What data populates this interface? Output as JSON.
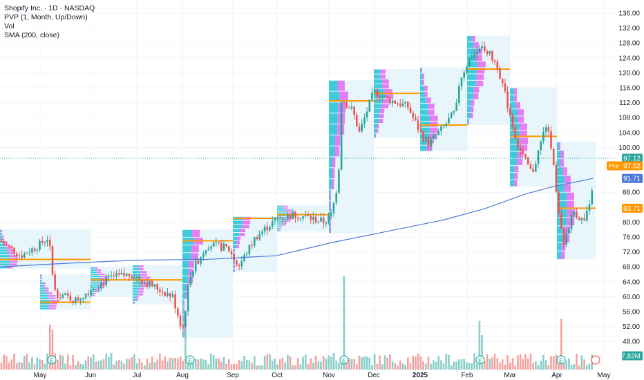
{
  "legend": {
    "title": "Shopify Inc. · 1D · NASDAQ",
    "line2": "PVP (1, Month, Up/Down)",
    "line3": "Vol",
    "line4": "SMA (200, close)"
  },
  "colors": {
    "up": "#26a69a",
    "down": "#ef5350",
    "sma": "#4a78d8",
    "poc": "#ff9800",
    "vp_up": "#22c3d6",
    "vp_down": "#e255f0",
    "range_bg": "#e8f6fb"
  },
  "price_tags": {
    "last": {
      "text": "97.12",
      "color": "#26a69a"
    },
    "pre": {
      "label": "Pre",
      "text": "97.02",
      "color": "#ff9800"
    },
    "sma": {
      "text": "91.71",
      "color": "#4a78d8"
    },
    "poc": {
      "text": "83.71",
      "color": "#ff9800"
    },
    "vol": {
      "text": "7.82M",
      "color": "#26a69a"
    }
  },
  "chart_data": {
    "type": "candlestick",
    "title": "Shopify Inc. · 1D · NASDAQ",
    "ylim": [
      44,
      137
    ],
    "y_ticks": [
      "136.00",
      "132.00",
      "128.00",
      "124.00",
      "120.00",
      "116.00",
      "112.00",
      "108.00",
      "104.00",
      "100.00",
      "88.00",
      "80.00",
      "76.00",
      "72.00",
      "68.00",
      "64.00",
      "60.00",
      "56.00",
      "52.00",
      "48.00"
    ],
    "x_ticks": [
      "May",
      "Jun",
      "Jul",
      "Aug",
      "Sep",
      "Oct",
      "Nov",
      "Dec",
      "2025",
      "Feb",
      "Mar",
      "Apr",
      "May"
    ],
    "earnings_markers": [
      "E",
      "E",
      "E",
      "E",
      "E",
      "E"
    ],
    "monthly_profiles": [
      {
        "month": "Apr",
        "low": 67.5,
        "high": 78.0,
        "poc": 70.0
      },
      {
        "month": "May",
        "low": 56.5,
        "high": 66.0,
        "poc": 58.5
      },
      {
        "month": "Jun",
        "low": 60.0,
        "high": 68.0,
        "poc": 64.5
      },
      {
        "month": "Jul",
        "low": 58.0,
        "high": 68.5,
        "poc": 64.5
      },
      {
        "month": "Aug",
        "low": 49.0,
        "high": 78.0,
        "poc": 75.0
      },
      {
        "month": "Sep",
        "low": 66.5,
        "high": 81.5,
        "poc": 81.0
      },
      {
        "month": "Oct",
        "low": 77.5,
        "high": 84.5,
        "poc": 82.0
      },
      {
        "month": "Nov",
        "low": 77.0,
        "high": 118.0,
        "poc": 112.5
      },
      {
        "month": "Dec",
        "low": 102.5,
        "high": 121.0,
        "poc": 114.5
      },
      {
        "month": "Jan",
        "low": 99.0,
        "high": 121.5,
        "poc": 106.0
      },
      {
        "month": "Feb",
        "low": 106.0,
        "high": 130.0,
        "poc": 121.0
      },
      {
        "month": "Mar",
        "low": 89.5,
        "high": 116.0,
        "poc": 103.0
      },
      {
        "month": "Apr",
        "low": 70.0,
        "high": 101.5,
        "poc": 83.71
      }
    ],
    "sma_200": [
      [
        0,
        68.0
      ],
      [
        100,
        69.0
      ],
      [
        200,
        69.8
      ],
      [
        300,
        70.0
      ],
      [
        400,
        71.0
      ],
      [
        480,
        74.5
      ],
      [
        560,
        77.5
      ],
      [
        640,
        80.5
      ],
      [
        700,
        83.5
      ],
      [
        760,
        87.5
      ],
      [
        800,
        89.5
      ],
      [
        840,
        91.0
      ],
      [
        858,
        91.71
      ]
    ],
    "last_price": 97.12,
    "premarket_price": 97.02,
    "sma_value": 91.71,
    "poc_value": 83.71,
    "last_volume": "7.82M"
  }
}
